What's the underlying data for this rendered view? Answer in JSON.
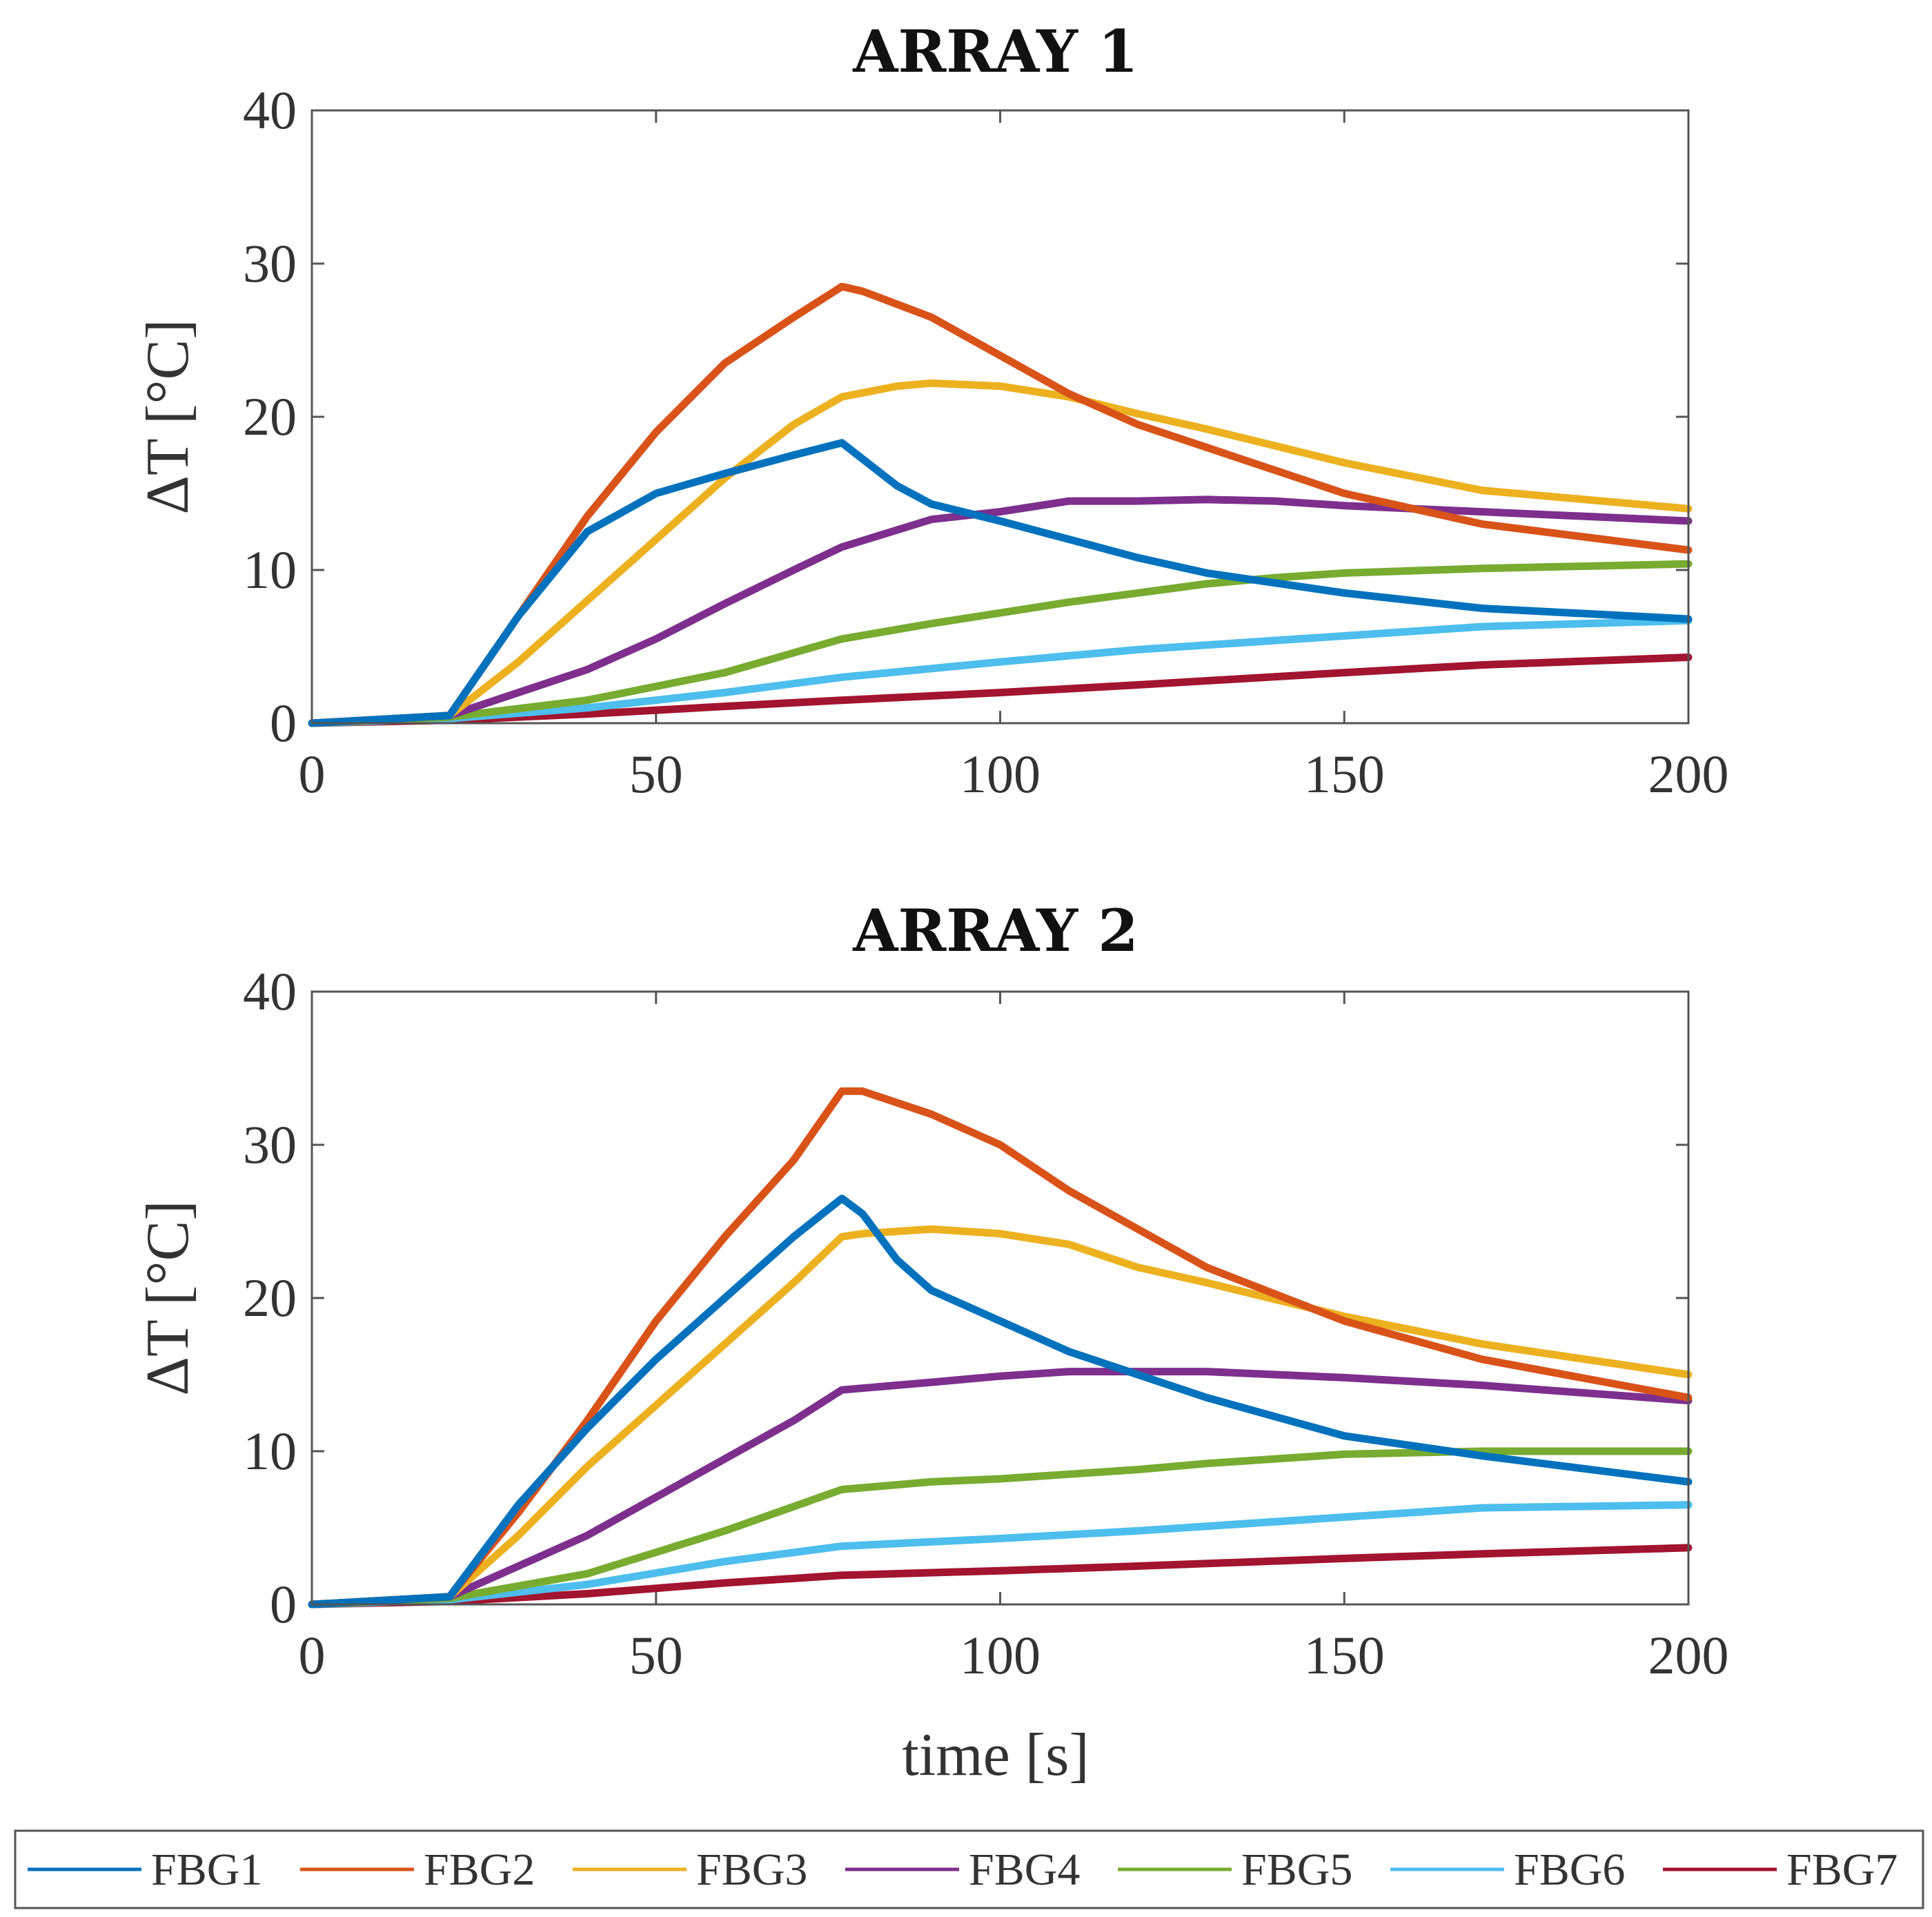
{
  "chart_data": [
    {
      "type": "line",
      "title": "ARRAY 1",
      "xlabel": "",
      "ylabel": "ΔT [°C]",
      "xlim": [
        0,
        200
      ],
      "ylim": [
        0,
        40
      ],
      "xticks": [
        0,
        50,
        100,
        150,
        200
      ],
      "yticks": [
        0,
        10,
        20,
        30,
        40
      ],
      "xtick_labels": [
        "0",
        "50",
        "100",
        "150",
        "200"
      ],
      "ytick_labels": [
        "0",
        "10",
        "20",
        "30",
        "40"
      ],
      "grid": false,
      "series": [
        {
          "name": "FBG1",
          "color": "#0072BD",
          "x": [
            0,
            20,
            30,
            40,
            50,
            60,
            70,
            77,
            85,
            90,
            100,
            110,
            120,
            130,
            150,
            170,
            200
          ],
          "y": [
            0,
            0.5,
            7,
            12.5,
            15,
            16.3,
            17.5,
            18.3,
            15.5,
            14.3,
            13.2,
            12,
            10.8,
            9.8,
            8.5,
            7.5,
            6.8
          ]
        },
        {
          "name": "FBG2",
          "color": "#D95319",
          "x": [
            0,
            20,
            30,
            40,
            50,
            60,
            70,
            77,
            80,
            90,
            100,
            110,
            120,
            130,
            150,
            170,
            200
          ],
          "y": [
            0,
            0.5,
            7,
            13.5,
            19,
            23.5,
            26.5,
            28.5,
            28.2,
            26.5,
            24,
            21.5,
            19.5,
            18,
            15,
            13,
            11.3
          ]
        },
        {
          "name": "FBG3",
          "color": "#EDB120",
          "x": [
            0,
            20,
            30,
            40,
            50,
            60,
            70,
            77,
            85,
            90,
            100,
            110,
            120,
            130,
            150,
            170,
            200
          ],
          "y": [
            0,
            0.5,
            4,
            8,
            12,
            16,
            19.5,
            21.3,
            22,
            22.2,
            22,
            21.3,
            20.2,
            19.2,
            17,
            15.2,
            14
          ]
        },
        {
          "name": "FBG4",
          "color": "#7E2F8E",
          "x": [
            0,
            20,
            30,
            40,
            50,
            60,
            70,
            77,
            90,
            100,
            110,
            120,
            130,
            140,
            150,
            170,
            200
          ],
          "y": [
            0,
            0.5,
            2,
            3.5,
            5.5,
            7.8,
            10,
            11.5,
            13.3,
            13.8,
            14.5,
            14.5,
            14.6,
            14.5,
            14.2,
            13.8,
            13.2
          ]
        },
        {
          "name": "FBG5",
          "color": "#77AC30",
          "x": [
            0,
            20,
            40,
            60,
            77,
            90,
            100,
            110,
            120,
            130,
            140,
            150,
            170,
            200
          ],
          "y": [
            0,
            0.4,
            1.5,
            3.3,
            5.5,
            6.5,
            7.2,
            7.9,
            8.5,
            9.1,
            9.5,
            9.8,
            10.1,
            10.4
          ]
        },
        {
          "name": "FBG6",
          "color": "#4DBEEE",
          "x": [
            0,
            20,
            40,
            60,
            77,
            100,
            120,
            150,
            170,
            200
          ],
          "y": [
            0,
            0.3,
            1,
            2,
            3,
            4,
            4.8,
            5.7,
            6.3,
            6.7
          ]
        },
        {
          "name": "FBG7",
          "color": "#A2142F",
          "x": [
            0,
            20,
            40,
            60,
            77,
            100,
            120,
            150,
            170,
            200
          ],
          "y": [
            0,
            0.2,
            0.6,
            1.1,
            1.5,
            2,
            2.5,
            3.3,
            3.8,
            4.3
          ]
        }
      ]
    },
    {
      "type": "line",
      "title": "ARRAY 2",
      "xlabel": "time [s]",
      "ylabel": "ΔT [°C]",
      "xlim": [
        0,
        200
      ],
      "ylim": [
        0,
        40
      ],
      "xticks": [
        0,
        50,
        100,
        150,
        200
      ],
      "yticks": [
        0,
        10,
        20,
        30,
        40
      ],
      "xtick_labels": [
        "0",
        "50",
        "100",
        "150",
        "200"
      ],
      "ytick_labels": [
        "0",
        "10",
        "20",
        "30",
        "40"
      ],
      "grid": false,
      "series": [
        {
          "name": "FBG1",
          "color": "#0072BD",
          "x": [
            0,
            20,
            30,
            40,
            50,
            60,
            70,
            77,
            80,
            85,
            90,
            100,
            110,
            120,
            130,
            150,
            170,
            200
          ],
          "y": [
            0,
            0.5,
            6.5,
            11.5,
            16,
            20,
            24,
            26.5,
            25.5,
            22.5,
            20.5,
            18.5,
            16.5,
            15,
            13.5,
            11,
            9.7,
            8
          ]
        },
        {
          "name": "FBG2",
          "color": "#D95319",
          "x": [
            0,
            20,
            30,
            40,
            50,
            60,
            70,
            77,
            80,
            90,
            100,
            110,
            120,
            130,
            150,
            170,
            200
          ],
          "y": [
            0,
            0.5,
            6,
            12,
            18.5,
            24,
            29,
            33.5,
            33.5,
            32,
            30,
            27,
            24.5,
            22,
            18.5,
            16,
            13.5
          ]
        },
        {
          "name": "FBG3",
          "color": "#EDB120",
          "x": [
            0,
            20,
            30,
            40,
            50,
            60,
            70,
            77,
            80,
            90,
            100,
            110,
            120,
            130,
            150,
            170,
            200
          ],
          "y": [
            0,
            0.5,
            4.5,
            9,
            13,
            17,
            21,
            24,
            24.2,
            24.5,
            24.2,
            23.5,
            22,
            21,
            18.8,
            17,
            15
          ]
        },
        {
          "name": "FBG4",
          "color": "#7E2F8E",
          "x": [
            0,
            20,
            30,
            40,
            50,
            60,
            70,
            77,
            90,
            100,
            110,
            120,
            130,
            140,
            150,
            170,
            200
          ],
          "y": [
            0,
            0.5,
            2.5,
            4.5,
            7,
            9.5,
            12,
            14,
            14.5,
            14.9,
            15.2,
            15.2,
            15.2,
            15,
            14.8,
            14.3,
            13.3
          ]
        },
        {
          "name": "FBG5",
          "color": "#77AC30",
          "x": [
            0,
            20,
            40,
            60,
            77,
            90,
            100,
            110,
            120,
            130,
            150,
            170,
            200
          ],
          "y": [
            0,
            0.4,
            2,
            4.8,
            7.5,
            8,
            8.2,
            8.5,
            8.8,
            9.2,
            9.8,
            10,
            10
          ]
        },
        {
          "name": "FBG6",
          "color": "#4DBEEE",
          "x": [
            0,
            20,
            40,
            60,
            77,
            100,
            120,
            150,
            170,
            200
          ],
          "y": [
            0,
            0.3,
            1.3,
            2.8,
            3.8,
            4.3,
            4.8,
            5.7,
            6.3,
            6.5
          ]
        },
        {
          "name": "FBG7",
          "color": "#A2142F",
          "x": [
            0,
            20,
            40,
            60,
            77,
            100,
            120,
            150,
            170,
            200
          ],
          "y": [
            0,
            0.2,
            0.7,
            1.4,
            1.9,
            2.2,
            2.5,
            3,
            3.3,
            3.7
          ]
        }
      ]
    }
  ],
  "legend": {
    "placement": "bottom",
    "entries": [
      {
        "label": "FBG1",
        "color": "#0072BD"
      },
      {
        "label": "FBG2",
        "color": "#D95319"
      },
      {
        "label": "FBG3",
        "color": "#EDB120"
      },
      {
        "label": "FBG4",
        "color": "#7E2F8E"
      },
      {
        "label": "FBG5",
        "color": "#77AC30"
      },
      {
        "label": "FBG6",
        "color": "#4DBEEE"
      },
      {
        "label": "FBG7",
        "color": "#A2142F"
      }
    ]
  }
}
